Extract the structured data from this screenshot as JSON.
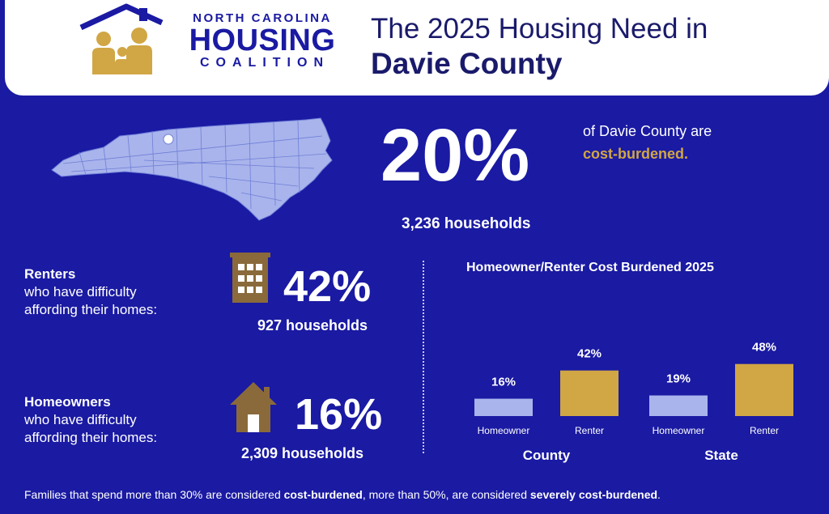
{
  "header": {
    "logo": {
      "line1": "NORTH CAROLINA",
      "line2": "HOUSING",
      "line3": "COALITION"
    },
    "title_line1": "The 2025 Housing Need in",
    "title_line2": "Davie County"
  },
  "summary": {
    "percent": "20%",
    "line1": "of Davie County are",
    "line2": "cost-burdened.",
    "households": "3,236 households"
  },
  "renters": {
    "label_bold": "Renters",
    "label_rest1": "who have difficulty",
    "label_rest2": "affording their homes:",
    "percent": "42%",
    "households": "927 households",
    "icon": "apartment-building-icon"
  },
  "homeowners": {
    "label_bold": "Homeowners",
    "label_rest1": "who have difficulty",
    "label_rest2": "affording their homes:",
    "percent": "16%",
    "households": "2,309 households",
    "icon": "house-icon"
  },
  "footer": {
    "part1": "Families that spend more than 30% are considered ",
    "part2": "cost-burdened",
    "part3": ", more than 50%, are considered ",
    "part4": "severely cost-burdened",
    "part5": "."
  },
  "colors": {
    "background": "#1a1aa3",
    "gold": "#d1a644",
    "light_blue": "#a9b4ec",
    "navy_text": "#1a1a6b"
  },
  "chart_data": {
    "type": "bar",
    "title": "Homeowner/Renter Cost Burdened 2025",
    "groups": [
      "County",
      "State"
    ],
    "categories": [
      "Homeowner",
      "Renter"
    ],
    "series": [
      {
        "values": [
          16,
          19
        ]
      },
      {
        "values": [
          42,
          48
        ]
      }
    ],
    "value_labels": [
      "16%",
      "42%",
      "19%",
      "48%"
    ],
    "unit": "%",
    "legend": "none",
    "grid": false
  }
}
